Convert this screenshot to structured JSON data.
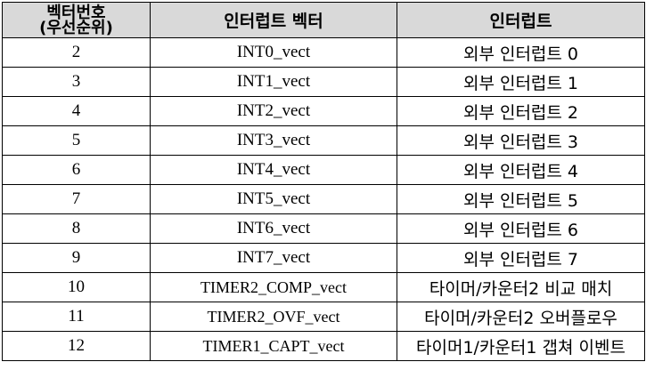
{
  "table": {
    "headers": {
      "number_line1": "벡터번호",
      "number_line2": "(우선순위)",
      "vector": "인터럽트 벡터",
      "interrupt": "인터럽트"
    },
    "rows": [
      {
        "number": "2",
        "vector": "INT0_vect",
        "interrupt": "외부 인터럽트 0"
      },
      {
        "number": "3",
        "vector": "INT1_vect",
        "interrupt": "외부 인터럽트 1"
      },
      {
        "number": "4",
        "vector": "INT2_vect",
        "interrupt": "외부 인터럽트 2"
      },
      {
        "number": "5",
        "vector": "INT3_vect",
        "interrupt": "외부 인터럽트 3"
      },
      {
        "number": "6",
        "vector": "INT4_vect",
        "interrupt": "외부 인터럽트 4"
      },
      {
        "number": "7",
        "vector": "INT5_vect",
        "interrupt": "외부 인터럽트 5"
      },
      {
        "number": "8",
        "vector": "INT6_vect",
        "interrupt": "외부 인터럽트 6"
      },
      {
        "number": "9",
        "vector": "INT7_vect",
        "interrupt": "외부 인터럽트 7"
      },
      {
        "number": "10",
        "vector": "TIMER2_COMP_vect",
        "interrupt": "타이머/카운터2 비교 매치"
      },
      {
        "number": "11",
        "vector": "TIMER2_OVF_vect",
        "interrupt": "타이머/카운터2 오버플로우"
      },
      {
        "number": "12",
        "vector": "TIMER1_CAPT_vect",
        "interrupt": "타이머1/카운터1 갭쳐 이벤트"
      }
    ]
  }
}
